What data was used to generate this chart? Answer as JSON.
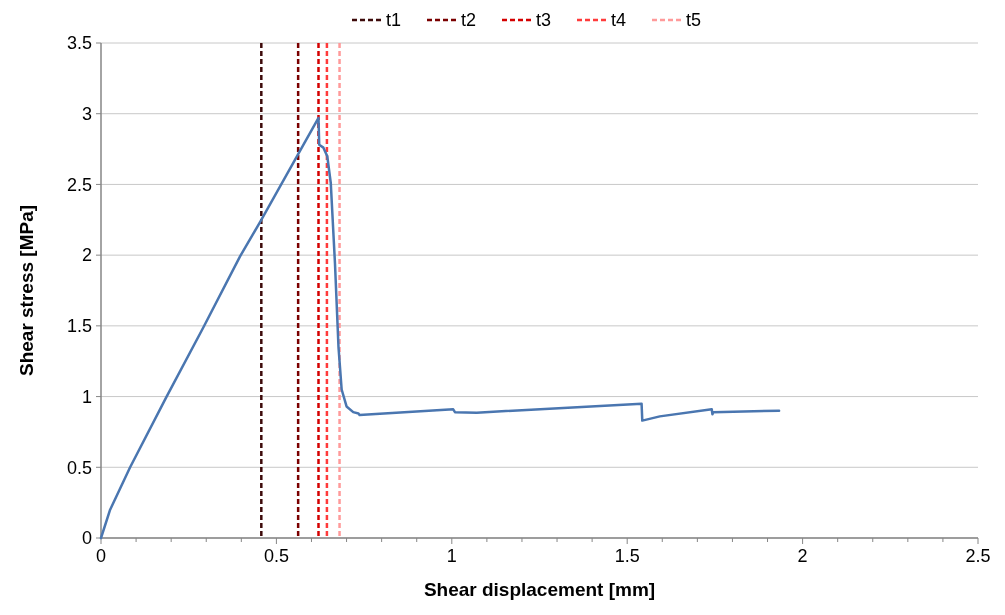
{
  "chart_data": {
    "type": "line",
    "xlabel": "Shear displacement [mm]",
    "ylabel": "Shear stress [MPa]",
    "xlim": [
      0,
      2.5
    ],
    "ylim": [
      0,
      3.5
    ],
    "xticks": [
      0,
      {
        "value": 0.1,
        "label": null
      },
      {
        "value": 0.2,
        "label": null
      },
      {
        "value": 0.3,
        "label": null
      },
      {
        "value": 0.4,
        "label": null
      },
      0.5,
      {
        "value": 0.6,
        "label": null
      },
      {
        "value": 0.7,
        "label": null
      },
      {
        "value": 0.8,
        "label": null
      },
      {
        "value": 0.9,
        "label": null
      },
      1,
      {
        "value": 1.1,
        "label": null
      },
      {
        "value": 1.2,
        "label": null
      },
      {
        "value": 1.3,
        "label": null
      },
      {
        "value": 1.4,
        "label": null
      },
      1.5,
      {
        "value": 1.6,
        "label": null
      },
      {
        "value": 1.7,
        "label": null
      },
      {
        "value": 1.8,
        "label": null
      },
      {
        "value": 1.9,
        "label": null
      },
      2,
      {
        "value": 2.1,
        "label": null
      },
      {
        "value": 2.2,
        "label": null
      },
      {
        "value": 2.3,
        "label": null
      },
      {
        "value": 2.4,
        "label": null
      },
      2.5
    ],
    "yticks": [
      0,
      0.5,
      1,
      1.5,
      2,
      2.5,
      3,
      3.5
    ],
    "grid": "y",
    "legend": "top",
    "line_style": "solid",
    "marker": "none",
    "series": [
      {
        "color": "#4a76b0",
        "x": [
          0,
          0.026,
          0.083,
          0.187,
          0.292,
          0.396,
          0.455,
          0.62,
          0.622,
          0.634,
          0.645,
          0.655,
          0.667,
          0.677,
          0.686,
          0.7,
          0.719,
          0.734,
          0.737,
          1.004,
          1.009,
          1.071,
          1.541,
          1.543,
          1.593,
          1.741,
          1.743,
          1.745,
          1.933
        ],
        "values": [
          0,
          0.2,
          0.5,
          1.0,
          1.49,
          1.99,
          2.24,
          2.97,
          2.78,
          2.76,
          2.7,
          2.51,
          1.94,
          1.35,
          1.05,
          0.93,
          0.89,
          0.88,
          0.87,
          0.91,
          0.89,
          0.886,
          0.95,
          0.83,
          0.86,
          0.91,
          0.875,
          0.89,
          0.9
        ]
      }
    ],
    "ref_lines": [
      {
        "axis": "x",
        "value": 0.457,
        "label": "t1",
        "color": "#3d0a0a",
        "line_style": "dashed"
      },
      {
        "axis": "x",
        "value": 0.562,
        "label": "t2",
        "color": "#7a0000",
        "line_style": "dashed"
      },
      {
        "axis": "x",
        "value": 0.62,
        "label": "t3",
        "color": "#d40000",
        "line_style": "dashed"
      },
      {
        "axis": "x",
        "value": 0.644,
        "label": "t4",
        "color": "#ff3b3b",
        "line_style": "dashed"
      },
      {
        "axis": "x",
        "value": 0.68,
        "label": "t5",
        "color": "#ff9a9a",
        "line_style": "dashed"
      }
    ]
  }
}
